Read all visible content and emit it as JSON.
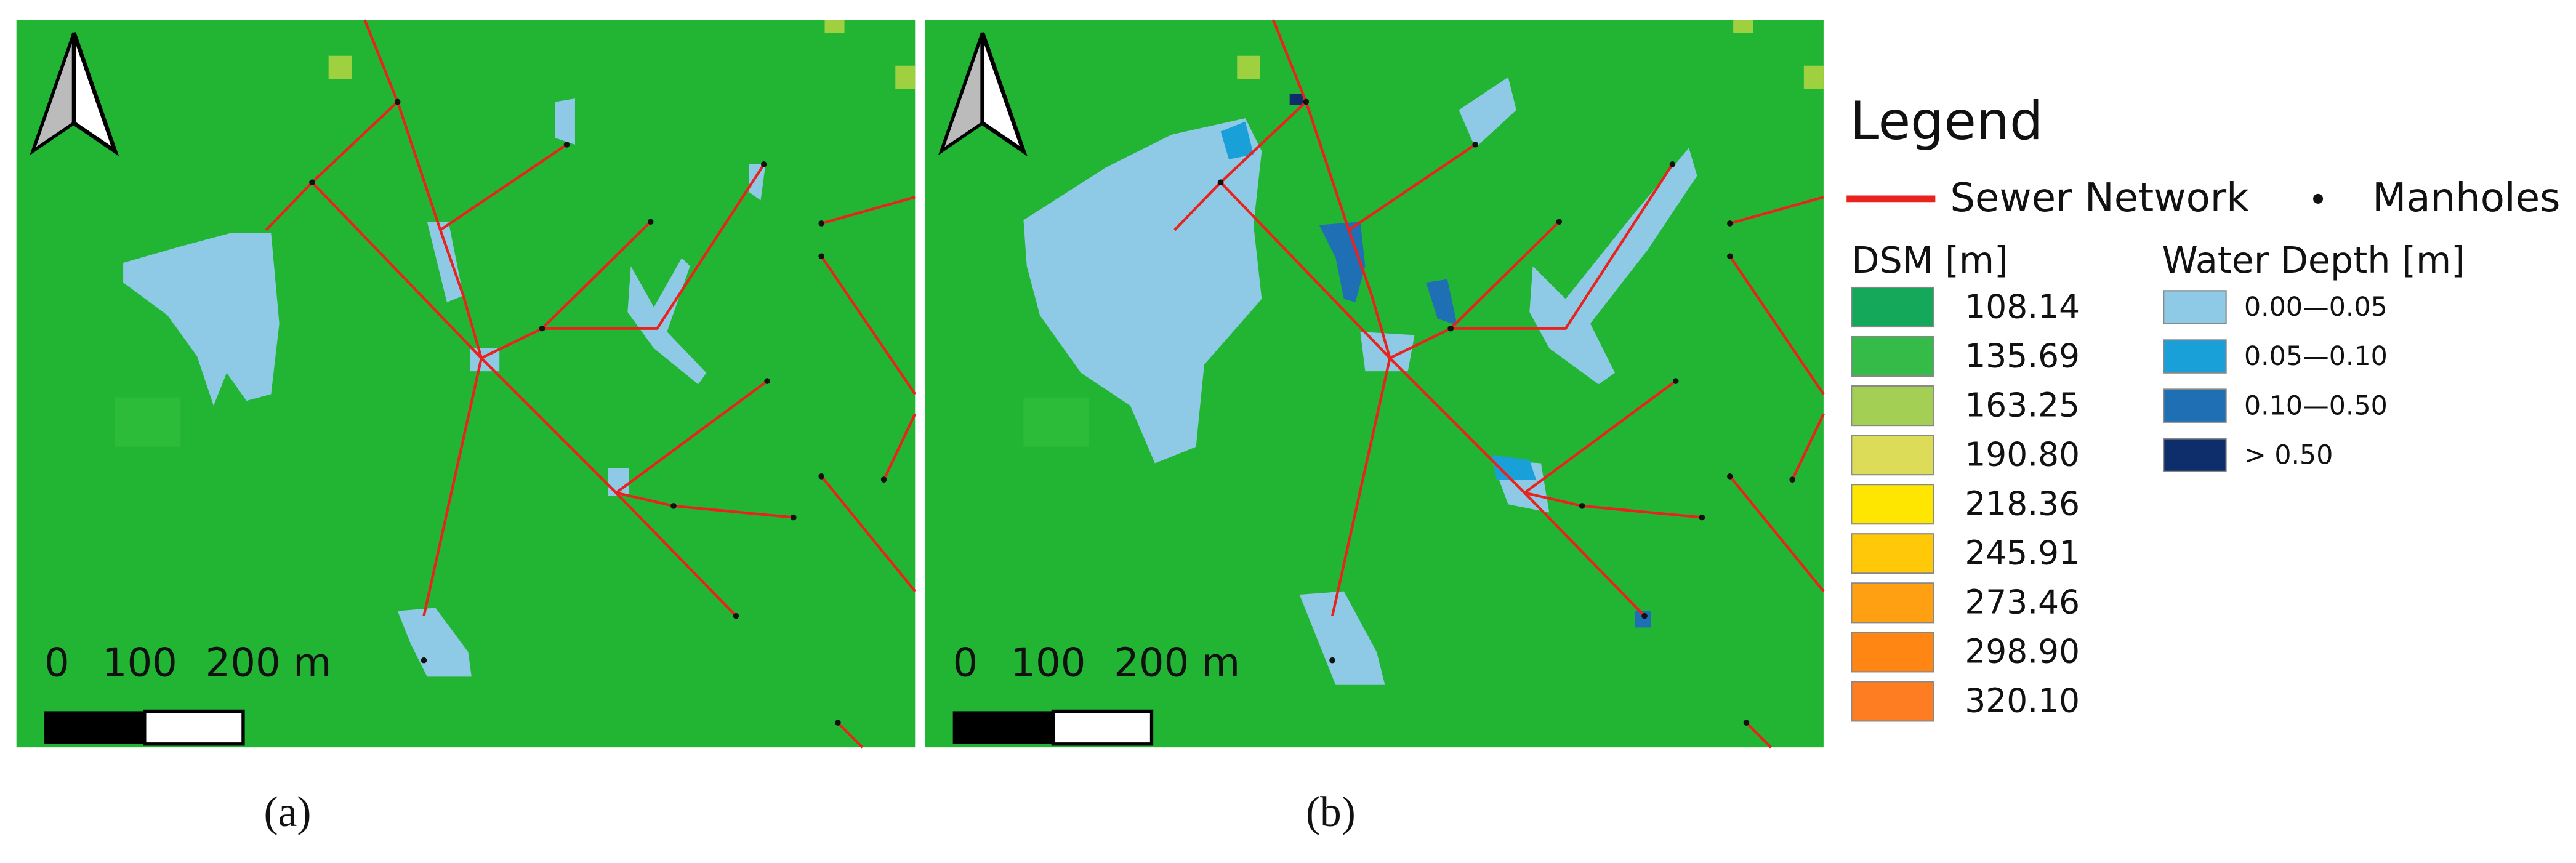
{
  "panels": [
    {
      "label": "(a)",
      "scale_bar": [
        "0",
        "100",
        "200 m"
      ]
    },
    {
      "label": "(b)",
      "scale_bar": [
        "0",
        "100",
        "200 m"
      ]
    }
  ],
  "legend": {
    "title": "Legend",
    "sewer": "Sewer Network",
    "manholes": "Manholes",
    "dsm": {
      "title": "DSM [m]",
      "items": [
        {
          "label": "108.14",
          "color": "#14a85a"
        },
        {
          "label": "135.69",
          "color": "#35bb48"
        },
        {
          "label": "163.25",
          "color": "#a3cf55"
        },
        {
          "label": "190.80",
          "color": "#dcdc58"
        },
        {
          "label": "218.36",
          "color": "#ffe600"
        },
        {
          "label": "245.91",
          "color": "#ffc90a"
        },
        {
          "label": "273.46",
          "color": "#ffa012"
        },
        {
          "label": "298.90",
          "color": "#ff8612"
        },
        {
          "label": "320.10",
          "color": "#ff7d22"
        }
      ]
    },
    "water_depth": {
      "title": "Water Depth [m]",
      "items": [
        {
          "label": "0.00—0.05",
          "color": "#8ecae6"
        },
        {
          "label": "0.05—0.10",
          "color": "#1aa0d8"
        },
        {
          "label": "0.10—0.50",
          "color": "#1f6fb5"
        },
        {
          "label": "> 0.50",
          "color": "#0d2d6b"
        }
      ]
    }
  }
}
